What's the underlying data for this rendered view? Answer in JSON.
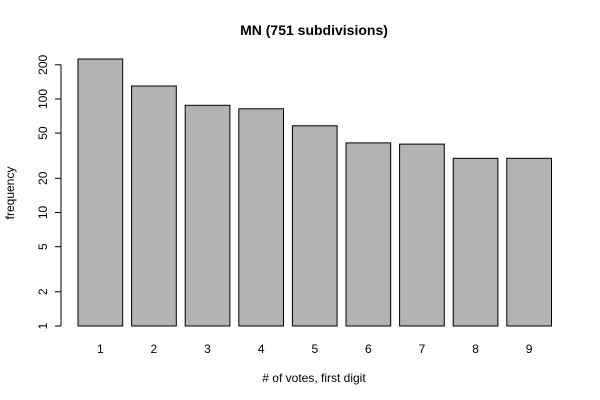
{
  "chart_data": {
    "type": "bar",
    "title": "MN (751 subdivisions)",
    "xlabel": "# of votes, first digit",
    "ylabel": "frequency",
    "categories": [
      "1",
      "2",
      "3",
      "4",
      "5",
      "6",
      "7",
      "8",
      "9"
    ],
    "values": [
      225,
      130,
      88,
      82,
      58,
      41,
      40,
      30,
      30
    ],
    "y_scale": "log",
    "ylim": [
      1,
      225
    ],
    "y_ticks": [
      1,
      2,
      5,
      10,
      20,
      50,
      100,
      200
    ],
    "bar_color": "#b3b3b3",
    "grid": false
  }
}
